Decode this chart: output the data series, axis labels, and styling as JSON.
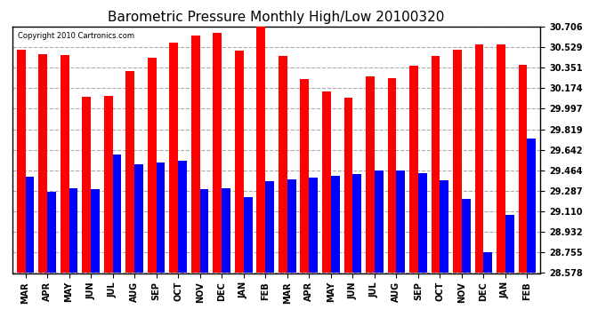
{
  "title": "Barometric Pressure Monthly High/Low 20100320",
  "copyright": "Copyright 2010 Cartronics.com",
  "categories": [
    "MAR",
    "APR",
    "MAY",
    "JUN",
    "JUL",
    "AUG",
    "SEP",
    "OCT",
    "NOV",
    "DEC",
    "JAN",
    "FEB",
    "MAR",
    "APR",
    "MAY",
    "JUN",
    "JUL",
    "AUG",
    "SEP",
    "OCT",
    "NOV",
    "DEC",
    "JAN",
    "FEB"
  ],
  "highs": [
    30.51,
    30.47,
    30.46,
    30.1,
    30.11,
    30.32,
    30.44,
    30.57,
    30.63,
    30.65,
    30.5,
    30.72,
    30.45,
    30.25,
    30.15,
    30.09,
    30.28,
    30.26,
    30.37,
    30.45,
    30.51,
    30.55,
    30.55,
    30.38
  ],
  "lows": [
    29.41,
    29.28,
    29.31,
    29.3,
    29.6,
    29.52,
    29.53,
    29.55,
    29.3,
    29.31,
    29.23,
    29.37,
    29.39,
    29.4,
    29.42,
    29.43,
    29.46,
    29.46,
    29.44,
    29.38,
    29.22,
    28.76,
    29.08,
    29.74
  ],
  "high_color": "#FF0000",
  "low_color": "#0000FF",
  "background_color": "#FFFFFF",
  "plot_background": "#FFFFFF",
  "grid_color": "#AAAAAA",
  "title_fontsize": 11,
  "yticks": [
    28.578,
    28.755,
    28.932,
    29.11,
    29.287,
    29.464,
    29.642,
    29.819,
    29.997,
    30.174,
    30.351,
    30.529,
    30.706
  ],
  "ymin": 28.578,
  "ymax": 30.706
}
